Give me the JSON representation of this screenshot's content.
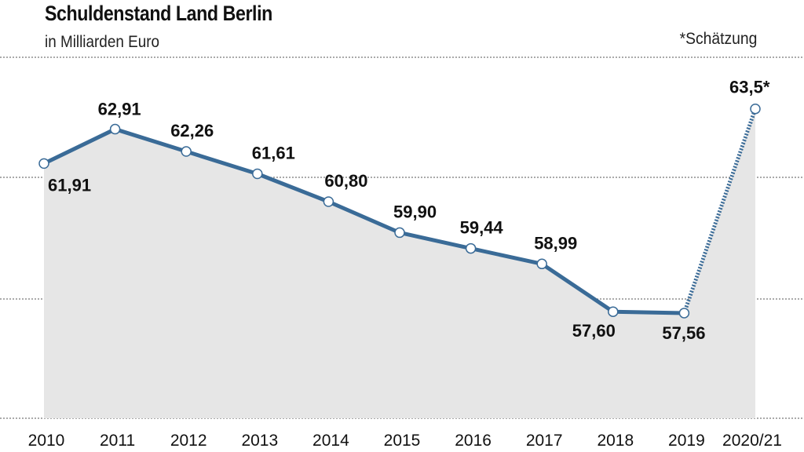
{
  "header": {
    "title": "Schuldenstand Land Berlin",
    "subtitle": "in Milliarden Euro",
    "note": "*Schätzung"
  },
  "colors": {
    "line": "#3a6b97",
    "area": "#e6e6e6",
    "grid": "#555555",
    "marker_fill": "#ffffff"
  },
  "chart_data": {
    "type": "area",
    "title": "Schuldenstand Land Berlin",
    "subtitle": "in Milliarden Euro",
    "categories": [
      "2010",
      "2011",
      "2012",
      "2013",
      "2014",
      "2015",
      "2016",
      "2017",
      "2018",
      "2019",
      "2020/21"
    ],
    "series": [
      {
        "values": [
          61.91,
          62.91,
          62.26,
          61.61,
          60.8,
          59.9,
          59.44,
          58.99,
          57.6,
          57.56,
          63.5
        ],
        "labels": [
          "61,91",
          "62,91",
          "62,26",
          "61,61",
          "60,80",
          "59,90",
          "59,44",
          "58,99",
          "57,60",
          "57,56",
          "63,5*"
        ],
        "estimated_from_index": 9
      }
    ],
    "ylim": [
      54.5,
      65
    ],
    "grid": true,
    "annotation": "*Schätzung"
  }
}
